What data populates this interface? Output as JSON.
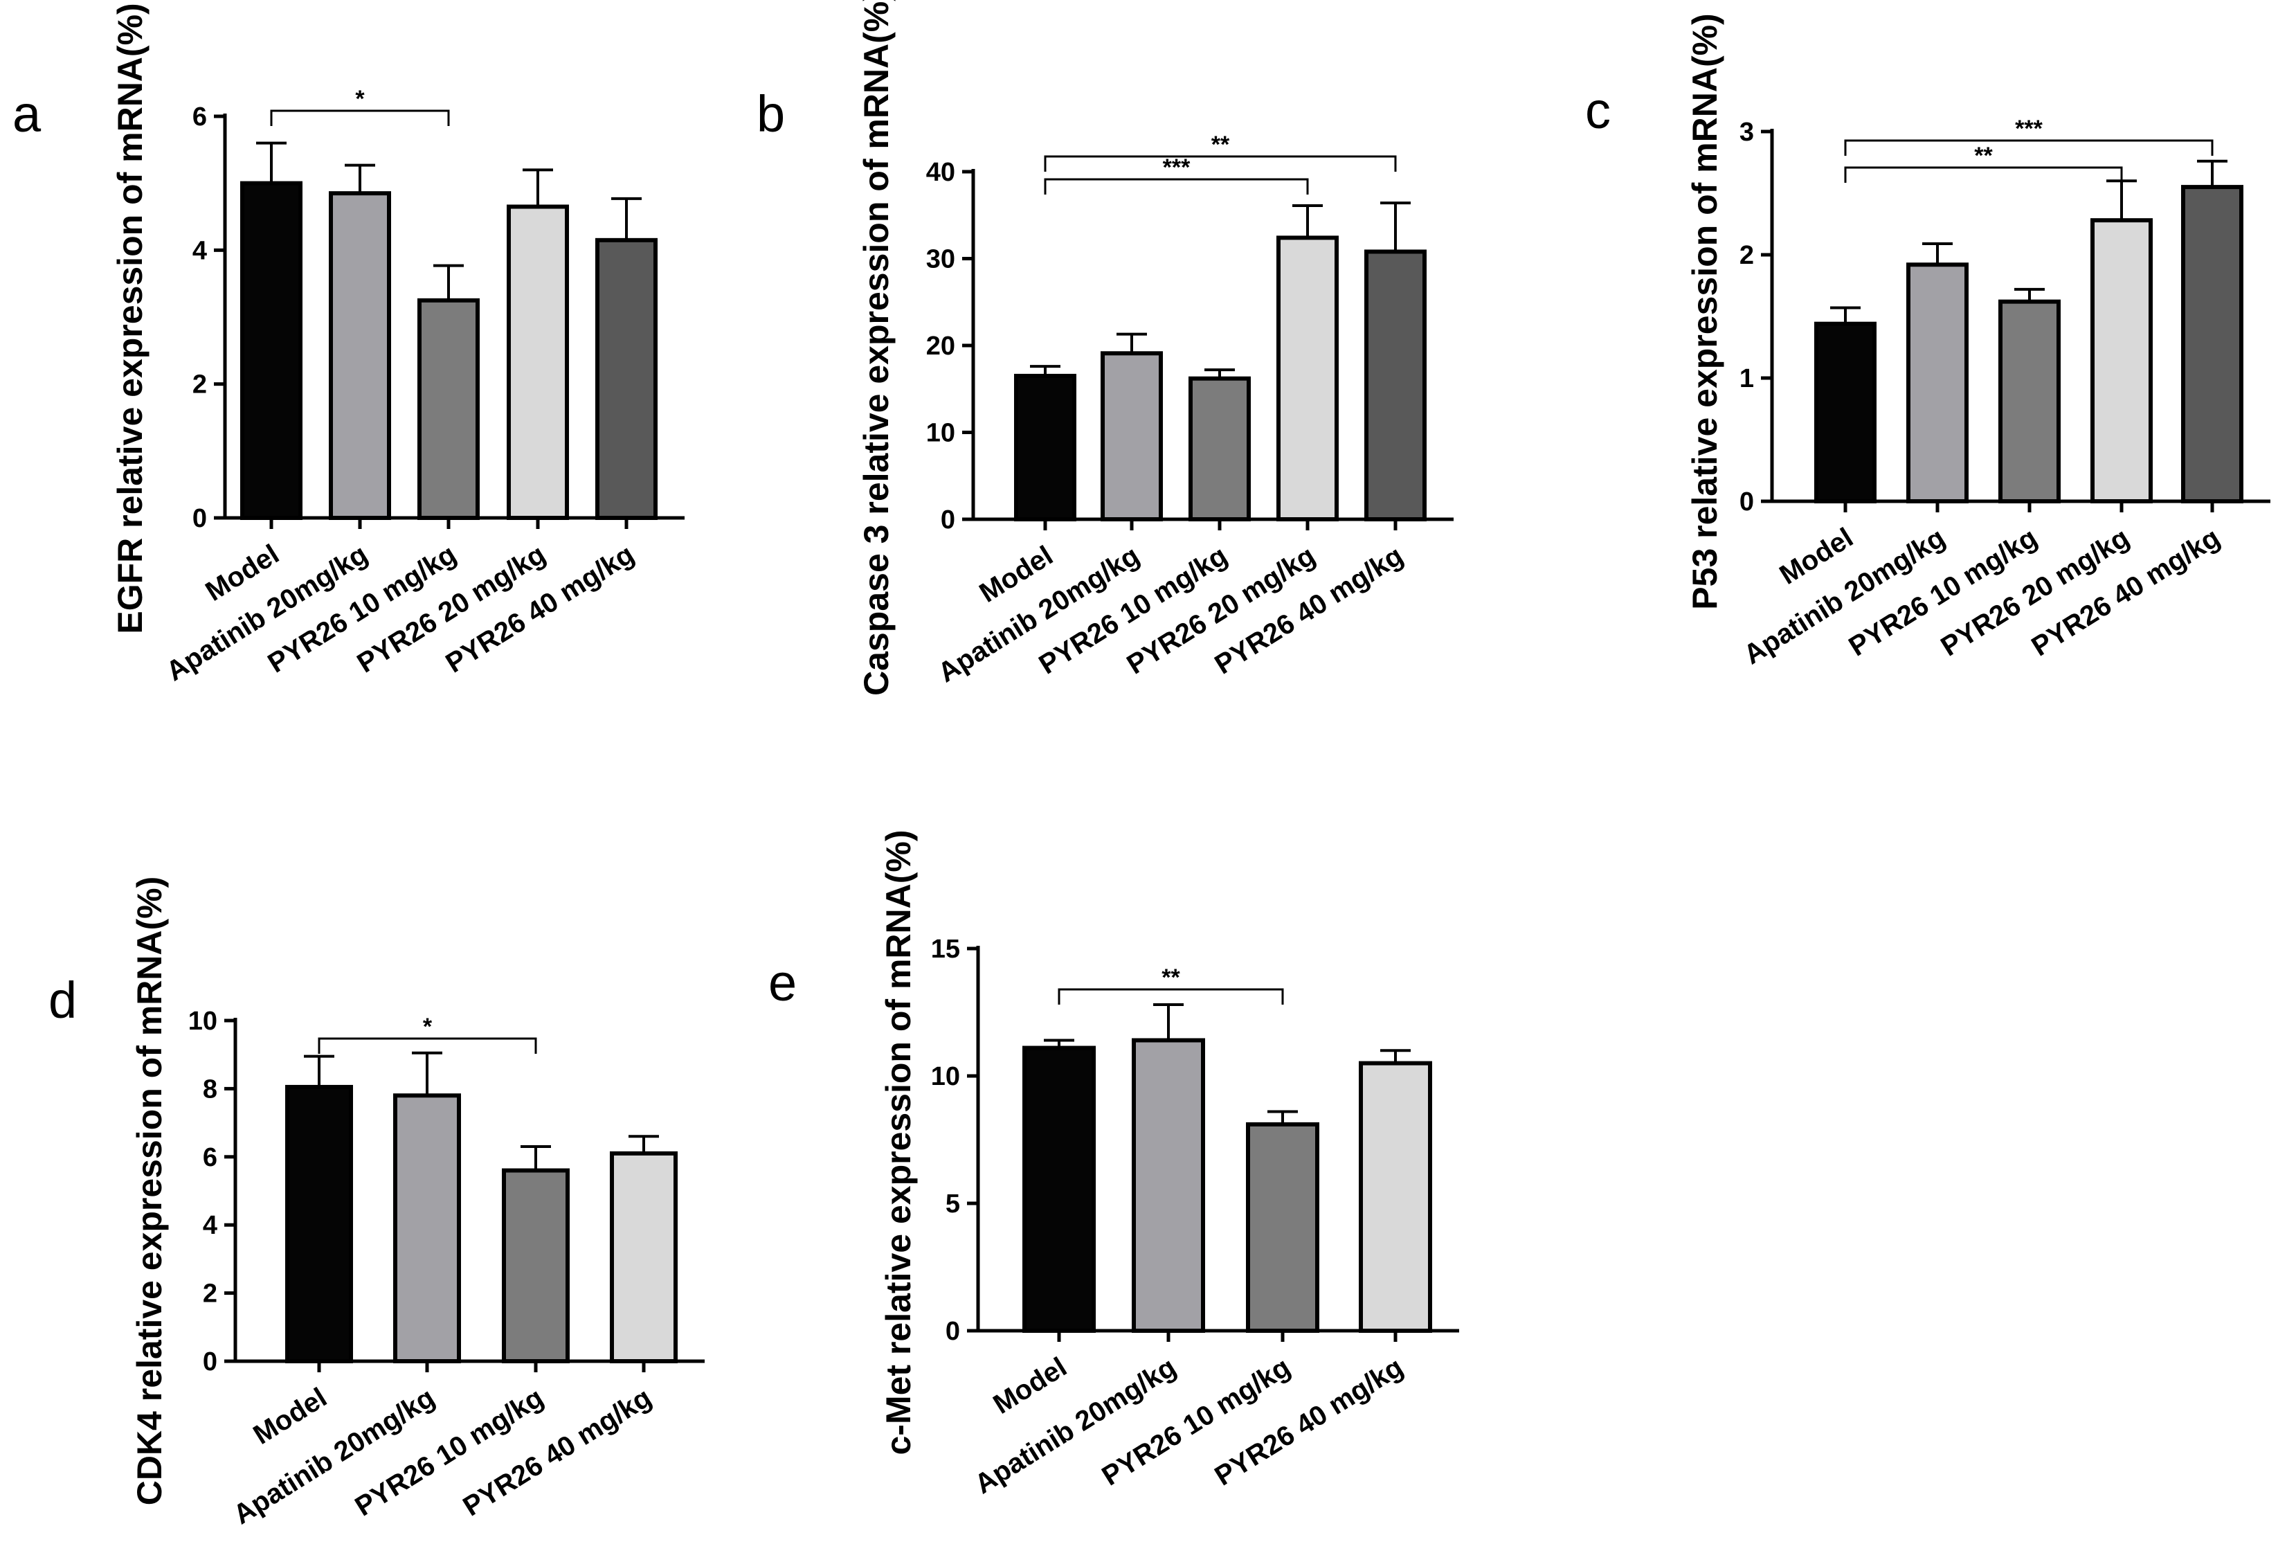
{
  "chart_data": [
    {
      "type": "bar",
      "panel": "a",
      "ylabel": "EGFR relative expression of mRNA(%)",
      "ylim": [
        0,
        6
      ],
      "yticks": [
        0,
        2,
        4,
        6
      ],
      "categories": [
        "Model",
        "Apatinib 20mg/kg",
        "PYR26 10 mg/kg",
        "PYR26 20 mg/kg",
        "PYR26 40 mg/kg"
      ],
      "values": [
        5.0,
        4.85,
        3.25,
        4.65,
        4.15
      ],
      "errors": [
        0.6,
        0.42,
        0.52,
        0.55,
        0.62
      ],
      "colors": [
        "#050505",
        "#a2a1a6",
        "#7c7c7c",
        "#d9d9d9",
        "#595959"
      ],
      "significance": [
        {
          "from": 0,
          "to": 2,
          "label": "*"
        }
      ]
    },
    {
      "type": "bar",
      "panel": "b",
      "ylabel": "Caspase 3 relative expression of mRNA(%)",
      "ylim": [
        0,
        40
      ],
      "yticks": [
        0,
        10,
        20,
        30,
        40
      ],
      "categories": [
        "Model",
        "Apatinib 20mg/kg",
        "PYR26 10 mg/kg",
        "PYR26 20 mg/kg",
        "PYR26 40 mg/kg"
      ],
      "values": [
        16.5,
        19.1,
        16.2,
        32.4,
        30.8
      ],
      "errors": [
        1.1,
        2.2,
        1.0,
        3.7,
        5.6
      ],
      "colors": [
        "#050505",
        "#a2a1a6",
        "#7c7c7c",
        "#d9d9d9",
        "#595959"
      ],
      "significance": [
        {
          "from": 0,
          "to": 3,
          "label": "***"
        },
        {
          "from": 0,
          "to": 4,
          "label": "**"
        }
      ]
    },
    {
      "type": "bar",
      "panel": "c",
      "ylabel": "P53 relative expression of mRNA(%)",
      "ylim": [
        0,
        3
      ],
      "yticks": [
        0,
        1,
        2,
        3
      ],
      "categories": [
        "Model",
        "Apatinib 20mg/kg",
        "PYR26 10 mg/kg",
        "PYR26 20 mg/kg",
        "PYR26 40 mg/kg"
      ],
      "values": [
        1.44,
        1.92,
        1.62,
        2.28,
        2.55
      ],
      "errors": [
        0.13,
        0.17,
        0.1,
        0.32,
        0.21
      ],
      "colors": [
        "#050505",
        "#a2a1a6",
        "#7c7c7c",
        "#d9d9d9",
        "#595959"
      ],
      "significance": [
        {
          "from": 0,
          "to": 3,
          "label": "**"
        },
        {
          "from": 0,
          "to": 4,
          "label": "***"
        }
      ]
    },
    {
      "type": "bar",
      "panel": "d",
      "ylabel": "CDK4 relative expression of mRNA(%)",
      "ylim": [
        0,
        10
      ],
      "yticks": [
        0,
        2,
        4,
        6,
        8,
        10
      ],
      "categories": [
        "Model",
        "Apatinib 20mg/kg",
        "PYR26 10 mg/kg",
        "PYR26 40 mg/kg"
      ],
      "values": [
        8.05,
        7.8,
        5.6,
        6.1
      ],
      "errors": [
        0.9,
        1.25,
        0.7,
        0.5
      ],
      "colors": [
        "#050505",
        "#a2a1a6",
        "#7c7c7c",
        "#d9d9d9"
      ],
      "significance": [
        {
          "from": 0,
          "to": 2,
          "label": "*"
        }
      ]
    },
    {
      "type": "bar",
      "panel": "e",
      "ylabel": "c-Met relative expression of mRNA(%)",
      "ylim": [
        0,
        15
      ],
      "yticks": [
        0,
        5,
        10,
        15
      ],
      "categories": [
        "Model",
        "Apatinib 20mg/kg",
        "PYR26 10 mg/kg",
        "PYR26 40 mg/kg"
      ],
      "values": [
        11.1,
        11.4,
        8.1,
        10.5
      ],
      "errors": [
        0.3,
        1.4,
        0.5,
        0.5
      ],
      "colors": [
        "#050505",
        "#a2a1a6",
        "#7c7c7c",
        "#d9d9d9"
      ],
      "significance": [
        {
          "from": 0,
          "to": 2,
          "label": "**"
        }
      ]
    }
  ]
}
